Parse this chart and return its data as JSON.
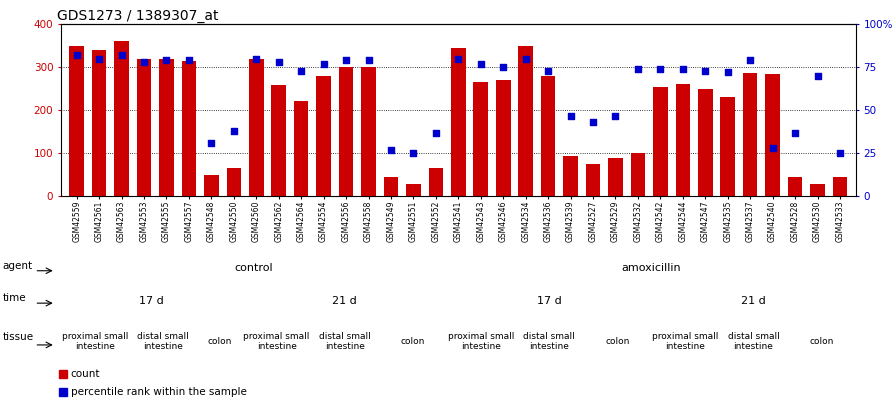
{
  "title": "GDS1273 / 1389307_at",
  "samples": [
    "GSM42559",
    "GSM42561",
    "GSM42563",
    "GSM42553",
    "GSM42555",
    "GSM42557",
    "GSM42548",
    "GSM42550",
    "GSM42560",
    "GSM42562",
    "GSM42564",
    "GSM42554",
    "GSM42556",
    "GSM42558",
    "GSM42549",
    "GSM42551",
    "GSM42552",
    "GSM42541",
    "GSM42543",
    "GSM42546",
    "GSM42534",
    "GSM42536",
    "GSM42539",
    "GSM42527",
    "GSM42529",
    "GSM42532",
    "GSM42542",
    "GSM42544",
    "GSM42547",
    "GSM42535",
    "GSM42537",
    "GSM42540",
    "GSM42528",
    "GSM42530",
    "GSM42533"
  ],
  "counts": [
    350,
    340,
    362,
    320,
    320,
    315,
    50,
    65,
    320,
    260,
    222,
    280,
    300,
    300,
    45,
    30,
    65,
    345,
    265,
    270,
    350,
    280,
    93,
    75,
    90,
    100,
    255,
    262,
    250,
    230,
    287,
    285,
    45,
    30,
    45
  ],
  "percentile": [
    82,
    80,
    82,
    78,
    79,
    79,
    31,
    38,
    80,
    78,
    73,
    77,
    79,
    79,
    27,
    25,
    37,
    80,
    77,
    75,
    80,
    73,
    47,
    43,
    47,
    74,
    74,
    74,
    73,
    72,
    79,
    28,
    37,
    70,
    25
  ],
  "bar_color": "#cc0000",
  "dot_color": "#0000cc",
  "ylim_left": [
    0,
    400
  ],
  "ylim_right": [
    0,
    100
  ],
  "yticks_left": [
    0,
    100,
    200,
    300,
    400
  ],
  "ytick_labels_right": [
    "0",
    "25",
    "50",
    "75",
    "100%"
  ],
  "yticks_right": [
    0,
    25,
    50,
    75,
    100
  ],
  "agent_groups": [
    {
      "label": "control",
      "start": 0,
      "end": 17,
      "color": "#aaddaa"
    },
    {
      "label": "amoxicillin",
      "start": 17,
      "end": 35,
      "color": "#66bb66"
    }
  ],
  "time_groups": [
    {
      "label": "17 d",
      "start": 0,
      "end": 8,
      "color": "#aaaadd"
    },
    {
      "label": "21 d",
      "start": 8,
      "end": 17,
      "color": "#8888cc"
    },
    {
      "label": "17 d",
      "start": 17,
      "end": 26,
      "color": "#aaaadd"
    },
    {
      "label": "21 d",
      "start": 26,
      "end": 35,
      "color": "#8888cc"
    }
  ],
  "tissue_groups": [
    {
      "label": "proximal small\nintestine",
      "start": 0,
      "end": 3,
      "color": "#ddaaaa"
    },
    {
      "label": "distal small\nintestine",
      "start": 3,
      "end": 6,
      "color": "#ddaaaa"
    },
    {
      "label": "colon",
      "start": 6,
      "end": 8,
      "color": "#cc7777"
    },
    {
      "label": "proximal small\nintestine",
      "start": 8,
      "end": 11,
      "color": "#ddaaaa"
    },
    {
      "label": "distal small\nintestine",
      "start": 11,
      "end": 14,
      "color": "#ddaaaa"
    },
    {
      "label": "colon",
      "start": 14,
      "end": 17,
      "color": "#cc7777"
    },
    {
      "label": "proximal small\nintestine",
      "start": 17,
      "end": 20,
      "color": "#ddaaaa"
    },
    {
      "label": "distal small\nintestine",
      "start": 20,
      "end": 23,
      "color": "#ddaaaa"
    },
    {
      "label": "colon",
      "start": 23,
      "end": 26,
      "color": "#cc7777"
    },
    {
      "label": "proximal small\nintestine",
      "start": 26,
      "end": 29,
      "color": "#ddaaaa"
    },
    {
      "label": "distal small\nintestine",
      "start": 29,
      "end": 32,
      "color": "#ddaaaa"
    },
    {
      "label": "colon",
      "start": 32,
      "end": 35,
      "color": "#cc7777"
    }
  ]
}
